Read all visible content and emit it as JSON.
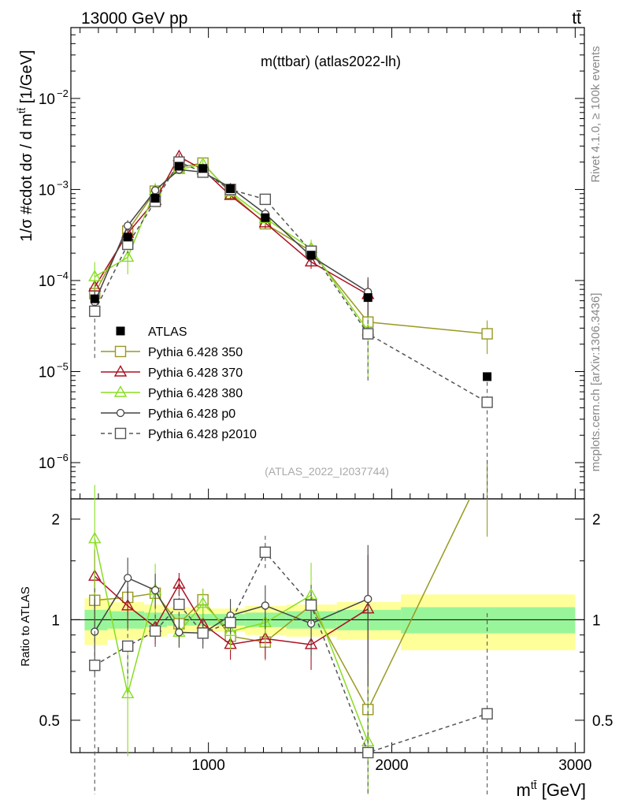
{
  "header": {
    "left": "13000 GeV pp",
    "right": "tt̄"
  },
  "main_title": "m(ttbar) (atlas2022-lh)",
  "side_labels": {
    "rivet": "Rivet 4.1.0, ≥ 100k events",
    "mcplots": "mcplots.cern.ch [arXiv:1306.3436]"
  },
  "watermark": "(ATLAS_2022_I2037744)",
  "y_main": {
    "label": "1/σ #cdot dσ / d m",
    "label_sup": "tt̄",
    "label_unit": " [1/GeV]",
    "ticks": [
      {
        "v": 0.01,
        "base": "10",
        "exp": "−2"
      },
      {
        "v": 0.001,
        "base": "10",
        "exp": "−3"
      },
      {
        "v": 0.0001,
        "base": "10",
        "exp": "−4"
      },
      {
        "v": 1e-05,
        "base": "10",
        "exp": "−5"
      },
      {
        "v": 1e-06,
        "base": "10",
        "exp": "−6"
      }
    ]
  },
  "y_ratio": {
    "label": "Ratio to ATLAS",
    "ticks": [
      {
        "v": 2,
        "label": "2"
      },
      {
        "v": 1,
        "label": "1"
      },
      {
        "v": 0.5,
        "label": "0.5"
      }
    ]
  },
  "x_axis": {
    "label": "m",
    "label_sup": "tt̄",
    "label_unit": " [GeV]",
    "ticks": [
      {
        "v": 1000,
        "label": "1000"
      },
      {
        "v": 2000,
        "label": "2000"
      },
      {
        "v": 3000,
        "label": "3000"
      }
    ]
  },
  "chart_data": {
    "type": "line",
    "title": "m(ttbar) (atlas2022-lh)",
    "xlabel": "m_tt̄ [GeV]",
    "ylabel": "1/σ dσ/dm_tt̄ [1/GeV]",
    "xlim": [
      250,
      3050
    ],
    "ylim": [
      4e-07,
      0.06
    ],
    "y_scale": "log",
    "ratio_ylim": [
      0.4,
      2.3
    ],
    "ratio_ylabel": "Ratio to ATLAS",
    "bins": [
      [
        325,
        450
      ],
      [
        450,
        650
      ],
      [
        650,
        775
      ],
      [
        775,
        900
      ],
      [
        900,
        1025
      ],
      [
        1025,
        1200
      ],
      [
        1200,
        1425
      ],
      [
        1425,
        1700
      ],
      [
        1700,
        2050
      ],
      [
        2050,
        3000
      ]
    ],
    "x": [
      380,
      560,
      710,
      840,
      970,
      1120,
      1310,
      1560,
      1870,
      2520
    ],
    "data": {
      "name": "ATLAS",
      "values": [
        6.3e-05,
        0.0003,
        0.0008,
        0.0018,
        0.0017,
        0.00102,
        0.00049,
        0.00019,
        6.5e-05,
        8.8e-06
      ],
      "band_inner": [
        0.07,
        0.06,
        0.05,
        0.04,
        0.04,
        0.04,
        0.05,
        0.06,
        0.07,
        0.09
      ],
      "band_outer": [
        0.16,
        0.13,
        0.11,
        0.09,
        0.08,
        0.08,
        0.1,
        0.11,
        0.13,
        0.19
      ]
    },
    "series": [
      {
        "name": "Pythia 6.428 350",
        "color": "#999922",
        "marker": "square-open",
        "dash": "",
        "values": [
          7.2e-05,
          0.00035,
          0.00096,
          0.00175,
          0.00195,
          0.00091,
          0.00042,
          0.00021,
          3.5e-05,
          2.6e-05
        ],
        "errors": [
          0.15,
          0.12,
          0.1,
          0.08,
          0.08,
          0.1,
          0.12,
          0.15,
          0.3,
          0.4
        ]
      },
      {
        "name": "Pythia 6.428 370",
        "color": "#aa1122",
        "marker": "triangle-open",
        "dash": "",
        "values": [
          8.5e-05,
          0.00033,
          0.00076,
          0.0023,
          0.00165,
          0.00086,
          0.00043,
          0.00016,
          7e-05,
          null
        ],
        "errors": [
          0.2,
          0.14,
          0.11,
          0.08,
          0.08,
          0.1,
          0.13,
          0.16,
          0.45,
          0.5
        ]
      },
      {
        "name": "Pythia 6.428 380",
        "color": "#88dd22",
        "marker": "triangle-open",
        "dash": "",
        "values": [
          0.00011,
          0.00018,
          0.00098,
          0.00165,
          0.0019,
          0.00094,
          0.00048,
          0.000225,
          2.8e-05,
          null
        ],
        "errors": [
          0.45,
          0.35,
          0.2,
          0.1,
          0.1,
          0.12,
          0.15,
          0.25,
          0.7,
          0.5
        ]
      },
      {
        "name": "Pythia 6.428 p0",
        "color": "#444444",
        "marker": "circle-open",
        "dash": "",
        "values": [
          5.8e-05,
          0.0004,
          0.00098,
          0.00165,
          0.00155,
          0.00105,
          0.00054,
          0.000185,
          7.5e-05,
          null
        ],
        "errors": [
          0.25,
          0.15,
          0.12,
          0.1,
          0.1,
          0.12,
          0.15,
          0.2,
          0.45,
          0.5
        ]
      },
      {
        "name": "Pythia 6.428 p2010",
        "color": "#555555",
        "marker": "square-open",
        "dash": "5,4",
        "values": [
          4.6e-05,
          0.00025,
          0.00074,
          0.002,
          0.00155,
          0.001,
          0.00078,
          0.00021,
          2.6e-05,
          4.6e-06
        ],
        "errors": [
          0.7,
          0.2,
          0.12,
          0.1,
          0.1,
          0.1,
          0.12,
          0.15,
          0.7,
          1.0
        ]
      }
    ]
  }
}
